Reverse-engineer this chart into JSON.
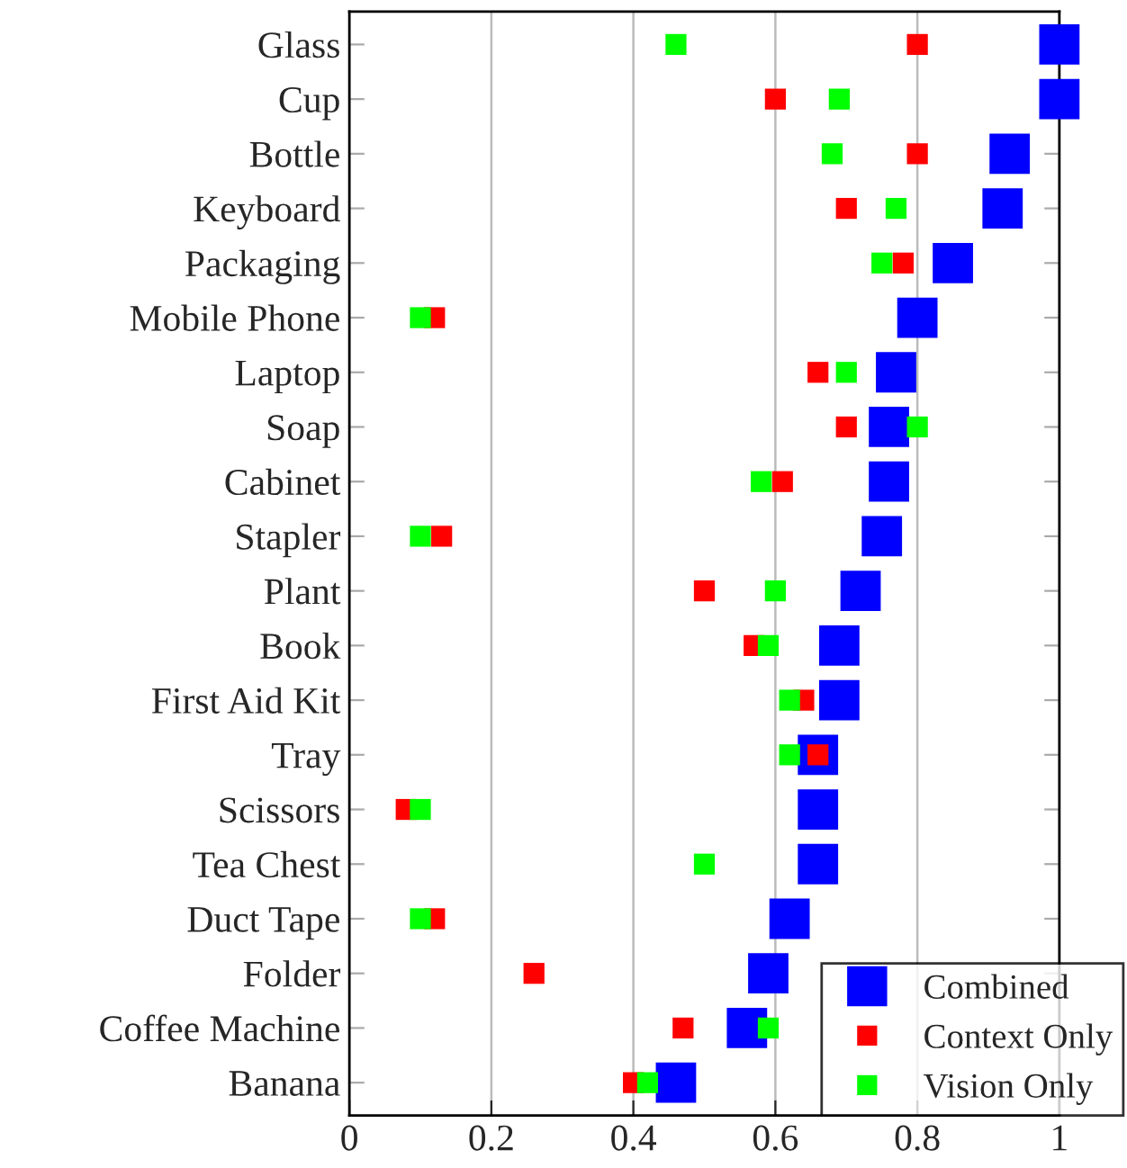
{
  "chart_data": {
    "type": "scatter",
    "orientation": "horizontal",
    "categories": [
      "Glass",
      "Cup",
      "Bottle",
      "Keyboard",
      "Packaging",
      "Mobile Phone",
      "Laptop",
      "Soap",
      "Cabinet",
      "Stapler",
      "Plant",
      "Book",
      "First Aid Kit",
      "Tray",
      "Scissors",
      "Tea Chest",
      "Duct Tape",
      "Folder",
      "Coffee Machine",
      "Banana"
    ],
    "series": [
      {
        "name": "Combined",
        "color": "#0000ff",
        "values": [
          1.0,
          1.0,
          0.93,
          0.92,
          0.85,
          0.8,
          0.77,
          0.76,
          0.76,
          0.75,
          0.72,
          0.69,
          0.69,
          0.66,
          0.66,
          0.66,
          0.62,
          0.59,
          0.56,
          0.46
        ]
      },
      {
        "name": "Context Only",
        "color": "#ff0000",
        "values": [
          0.8,
          0.6,
          0.8,
          0.7,
          0.78,
          0.12,
          0.66,
          0.7,
          0.61,
          0.13,
          0.5,
          0.57,
          0.64,
          0.66,
          0.08,
          null,
          0.12,
          0.26,
          0.47,
          0.4
        ]
      },
      {
        "name": "Vision Only",
        "color": "#00ff00",
        "values": [
          0.46,
          0.69,
          0.68,
          0.77,
          0.75,
          0.1,
          0.7,
          0.8,
          0.58,
          0.1,
          0.6,
          0.59,
          0.62,
          0.62,
          0.1,
          0.5,
          0.1,
          null,
          0.59,
          0.42
        ]
      }
    ],
    "xlim": [
      0,
      1
    ],
    "xticks": [
      0,
      0.2,
      0.4,
      0.6,
      0.8,
      1
    ],
    "grid": "x",
    "legend": "bottom right",
    "marker": "square"
  }
}
